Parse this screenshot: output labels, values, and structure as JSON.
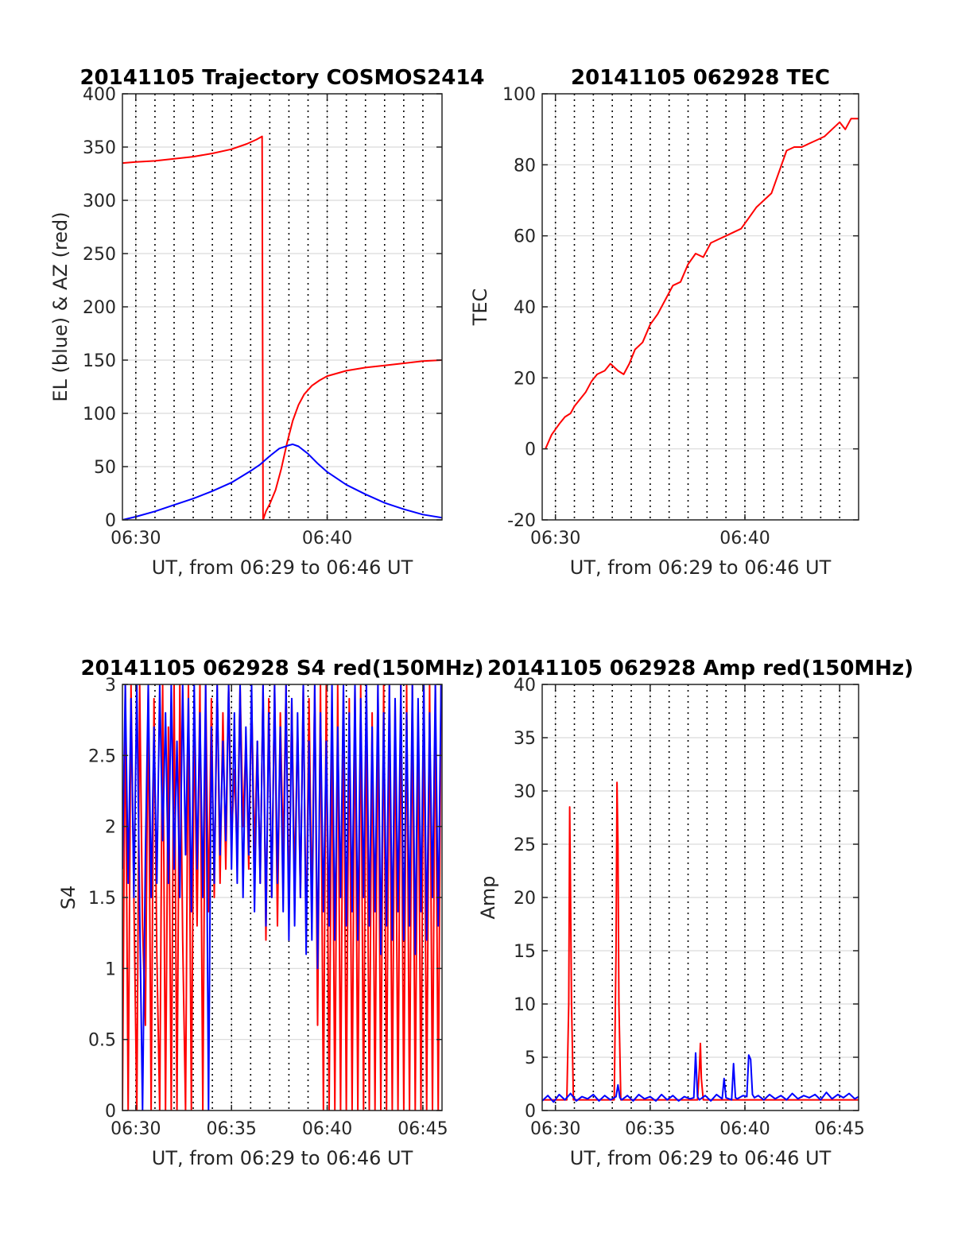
{
  "figure": {
    "background": "#ffffff"
  },
  "colors": {
    "red": "#ff0000",
    "blue": "#0000ff",
    "grid": "#000000",
    "axis": "#262626"
  },
  "chart_data": [
    {
      "id": "trajectory",
      "type": "line",
      "title": "20141105 Trajectory COSMOS2414",
      "xlabel": "UT, from 06:29 to 06:46 UT",
      "ylabel": "EL (blue) & AZ (red)",
      "xlim_min": [
        29.3,
        46
      ],
      "ylim": [
        0,
        400
      ],
      "yticks": [
        0,
        50,
        100,
        150,
        200,
        250,
        300,
        350,
        400
      ],
      "ytick_labels": [
        "0",
        "50",
        "100",
        "150",
        "200",
        "250",
        "300",
        "350",
        "400"
      ],
      "xticks_min": [
        30,
        40
      ],
      "xtick_labels": [
        "06:30",
        "06:40"
      ],
      "minor_grid_min": [
        30,
        31,
        32,
        33,
        34,
        35,
        36,
        37,
        38,
        39,
        40,
        41,
        42,
        43,
        44,
        45
      ],
      "grid": true,
      "series": [
        {
          "color": "#ff0000",
          "x_min": [
            29.3,
            30,
            31,
            32,
            33,
            34,
            35,
            35.8,
            36.3,
            36.6,
            36.65,
            36.8,
            37.0,
            37.3,
            37.6,
            37.9,
            38.2,
            38.5,
            38.8,
            39.2,
            39.6,
            40,
            41,
            42,
            43,
            44,
            45,
            46
          ],
          "y": [
            335,
            336,
            337,
            339,
            341,
            344,
            348,
            353,
            357,
            360,
            0,
            8,
            15,
            28,
            48,
            72,
            93,
            108,
            118,
            126,
            131,
            135,
            140,
            143,
            145,
            147,
            149,
            150
          ]
        },
        {
          "color": "#0000ff",
          "x_min": [
            29.3,
            30,
            31,
            32,
            33,
            34,
            35,
            36,
            36.5,
            37,
            37.5,
            38,
            38.2,
            38.5,
            39,
            39.5,
            40,
            41,
            42,
            43,
            44,
            45,
            46
          ],
          "y": [
            0,
            3,
            8,
            14,
            20,
            27,
            35,
            46,
            52,
            60,
            67,
            70,
            71,
            69,
            62,
            53,
            45,
            33,
            24,
            16,
            10,
            5,
            2
          ]
        }
      ]
    },
    {
      "id": "tec",
      "type": "line",
      "title": "20141105 062928 TEC",
      "xlabel": "UT, from 06:29 to 06:46 UT",
      "ylabel": "TEC",
      "xlim_min": [
        29.3,
        46
      ],
      "ylim": [
        -20,
        100
      ],
      "yticks": [
        -20,
        0,
        20,
        40,
        60,
        80,
        100
      ],
      "ytick_labels": [
        "-20",
        "0",
        "20",
        "40",
        "60",
        "80",
        "100"
      ],
      "xticks_min": [
        30,
        40
      ],
      "xtick_labels": [
        "06:30",
        "06:40"
      ],
      "minor_grid_min": [
        30,
        31,
        32,
        33,
        34,
        35,
        36,
        37,
        38,
        39,
        40,
        41,
        42,
        43,
        44,
        45
      ],
      "grid": true,
      "series": [
        {
          "color": "#ff0000",
          "x_min": [
            29.47,
            29.8,
            30.2,
            30.5,
            30.8,
            31.0,
            31.3,
            31.6,
            31.9,
            32.2,
            32.6,
            32.9,
            33.3,
            33.6,
            33.9,
            34.2,
            34.6,
            35.0,
            35.4,
            35.8,
            36.2,
            36.6,
            37.0,
            37.4,
            37.8,
            38.2,
            38.6,
            39.0,
            39.4,
            39.8,
            40.2,
            40.6,
            41.0,
            41.4,
            41.8,
            42.2,
            42.6,
            43.0,
            43.4,
            43.8,
            44.2,
            44.6,
            45.0,
            45.3,
            45.6,
            46.0
          ],
          "y": [
            0,
            4,
            7,
            9,
            10,
            12,
            14,
            16,
            19,
            21,
            22,
            24,
            22,
            21,
            24,
            28,
            30,
            35,
            38,
            42,
            46,
            47,
            52,
            55,
            54,
            58,
            59,
            60,
            61,
            62,
            65,
            68,
            70,
            72,
            78,
            84,
            85,
            85,
            86,
            87,
            88,
            90,
            92,
            90,
            93,
            93
          ]
        }
      ]
    },
    {
      "id": "s4",
      "type": "line",
      "title": "20141105 062928 S4 red(150MHz)",
      "xlabel": "UT, from 06:29 to 06:46 UT",
      "ylabel": "S4",
      "xlim_min": [
        29.3,
        46
      ],
      "ylim": [
        0,
        3
      ],
      "yticks": [
        0,
        0.5,
        1,
        1.5,
        2,
        2.5,
        3
      ],
      "ytick_labels": [
        "0",
        "0.5",
        "1",
        "1.5",
        "2",
        "2.5",
        "3"
      ],
      "xticks_min": [
        30,
        35,
        40,
        45
      ],
      "xtick_labels": [
        "06:30",
        "06:35",
        "06:40",
        "06:45"
      ],
      "minor_grid_min": [
        30,
        31,
        32,
        33,
        34,
        35,
        36,
        37,
        38,
        39,
        40,
        41,
        42,
        43,
        44,
        45
      ],
      "grid": true,
      "series": [
        {
          "color": "#ff0000",
          "x_min": [
            29.3,
            29.45,
            29.6,
            29.75,
            29.9,
            30.05,
            30.2,
            30.35,
            30.5,
            30.65,
            30.8,
            30.95,
            31.1,
            31.25,
            31.4,
            31.55,
            31.7,
            31.85,
            32.0,
            32.15,
            32.3,
            32.45,
            32.6,
            32.75,
            32.9,
            33.05,
            33.2,
            33.35,
            33.5,
            33.65,
            33.8,
            33.95,
            34.1,
            34.25,
            34.4,
            34.55,
            34.7,
            34.85,
            35.0,
            35.15,
            35.3,
            35.45,
            35.6,
            35.75,
            35.9,
            36.05,
            36.2,
            36.35,
            36.5,
            36.65,
            36.8,
            36.95,
            37.1,
            37.25,
            37.4,
            37.55,
            37.7,
            37.85,
            38.0,
            38.15,
            38.3,
            38.45,
            38.6,
            38.75,
            38.9,
            39.05,
            39.2,
            39.35,
            39.5,
            39.65,
            39.8,
            39.95,
            40.1,
            40.25,
            40.4,
            40.55,
            40.7,
            40.85,
            41.0,
            41.15,
            41.3,
            41.45,
            41.6,
            41.75,
            41.9,
            42.05,
            42.2,
            42.35,
            42.5,
            42.65,
            42.8,
            42.95,
            43.1,
            43.25,
            43.4,
            43.55,
            43.7,
            43.85,
            44.0,
            44.15,
            44.3,
            44.45,
            44.6,
            44.75,
            44.9,
            45.05,
            45.2,
            45.35,
            45.5,
            45.65,
            45.8,
            45.95
          ],
          "y": [
            0,
            3,
            0,
            3,
            1.5,
            0,
            3,
            1.3,
            0.6,
            3,
            0,
            2.9,
            1.1,
            0,
            3,
            0,
            2.7,
            0,
            3,
            0,
            3,
            1.2,
            0,
            3,
            0,
            2.8,
            1.3,
            3,
            0,
            3,
            1.4,
            2.9,
            1.5,
            3,
            1.6,
            2.8,
            1.7,
            3,
            1.9,
            2.4,
            1.8,
            3,
            2.0,
            2.6,
            1.7,
            2.9,
            1.8,
            2.6,
            1.6,
            3,
            1.2,
            2.9,
            1.5,
            3,
            1.3,
            2.8,
            1.8,
            3,
            1.4,
            2.9,
            1.6,
            2.7,
            1.5,
            3,
            1.2,
            2.9,
            1.4,
            3,
            0.6,
            3,
            0,
            3,
            0,
            2.8,
            0,
            3,
            0,
            3,
            0,
            2.9,
            0,
            3,
            0,
            3,
            0,
            3,
            0,
            2.8,
            0,
            3,
            0,
            3,
            0,
            3,
            0,
            2.9,
            0,
            3,
            0,
            3,
            0,
            3,
            0,
            2.8,
            0,
            3,
            0,
            3,
            0,
            3,
            0,
            3
          ]
        },
        {
          "color": "#0000ff",
          "x_min": [
            29.3,
            29.45,
            29.6,
            29.75,
            29.9,
            30.05,
            30.2,
            30.35,
            30.5,
            30.65,
            30.8,
            30.95,
            31.1,
            31.25,
            31.4,
            31.55,
            31.7,
            31.85,
            32.0,
            32.15,
            32.3,
            32.45,
            32.6,
            32.75,
            32.9,
            33.05,
            33.2,
            33.35,
            33.5,
            33.65,
            33.8,
            33.95,
            34.1,
            34.25,
            34.4,
            34.55,
            34.7,
            34.85,
            35.0,
            35.15,
            35.3,
            35.45,
            35.6,
            35.75,
            35.9,
            36.05,
            36.2,
            36.35,
            36.5,
            36.65,
            36.8,
            36.95,
            37.1,
            37.25,
            37.4,
            37.55,
            37.7,
            37.85,
            38.0,
            38.15,
            38.3,
            38.45,
            38.6,
            38.75,
            38.9,
            39.05,
            39.2,
            39.35,
            39.5,
            39.65,
            39.8,
            39.95,
            40.1,
            40.25,
            40.4,
            40.55,
            40.7,
            40.85,
            41.0,
            41.15,
            41.3,
            41.45,
            41.6,
            41.75,
            41.9,
            42.05,
            42.2,
            42.35,
            42.5,
            42.65,
            42.8,
            42.95,
            43.1,
            43.25,
            43.4,
            43.55,
            43.7,
            43.85,
            44.0,
            44.15,
            44.3,
            44.45,
            44.6,
            44.75,
            44.9,
            45.05,
            45.2,
            45.35,
            45.5,
            45.65,
            45.8,
            45.95
          ],
          "y": [
            1.7,
            3,
            1.6,
            2.9,
            1.5,
            3,
            1.4,
            0,
            1.8,
            3,
            1.5,
            2.7,
            1.6,
            3,
            1.9,
            2.8,
            1.6,
            3,
            1.7,
            2.6,
            1.5,
            3,
            1.8,
            2.9,
            1.4,
            3,
            1.7,
            2.8,
            1.5,
            3,
            0,
            2.7,
            1.6,
            3,
            1.8,
            2.6,
            1.9,
            3,
            1.7,
            2.8,
            1.6,
            3,
            1.5,
            2.7,
            1.8,
            3,
            1.4,
            2.6,
            1.6,
            3,
            1.3,
            2.8,
            1.5,
            3,
            1.6,
            2.7,
            1.4,
            3,
            1.2,
            2.9,
            1.3,
            2.8,
            1.5,
            3,
            1.1,
            2.6,
            1.2,
            3,
            1.0,
            2.8,
            1.4,
            2.6,
            1.3,
            3,
            1.2,
            2.7,
            1.5,
            3,
            1.3,
            2.8,
            1.4,
            3,
            1.2,
            2.9,
            1.5,
            3,
            1.3,
            2.7,
            1.4,
            3,
            1.1,
            2.8,
            1.3,
            3,
            1.2,
            2.9,
            1.4,
            3,
            1.2,
            2.8,
            1.3,
            3,
            1.1,
            2.9,
            1.4,
            3,
            1.2,
            2.8,
            1.5,
            3,
            1.3,
            3
          ]
        }
      ]
    },
    {
      "id": "amp",
      "type": "line",
      "title": "20141105 062928 Amp red(150MHz)",
      "xlabel": "UT, from 06:29 to 06:46 UT",
      "ylabel": "Amp",
      "xlim_min": [
        29.3,
        46
      ],
      "ylim": [
        0,
        40
      ],
      "yticks": [
        0,
        5,
        10,
        15,
        20,
        25,
        30,
        35,
        40
      ],
      "ytick_labels": [
        "0",
        "5",
        "10",
        "15",
        "20",
        "25",
        "30",
        "35",
        "40"
      ],
      "xticks_min": [
        30,
        35,
        40,
        45
      ],
      "xtick_labels": [
        "06:30",
        "06:35",
        "06:40",
        "06:45"
      ],
      "minor_grid_min": [
        30,
        31,
        32,
        33,
        34,
        35,
        36,
        37,
        38,
        39,
        40,
        41,
        42,
        43,
        44,
        45
      ],
      "grid": true,
      "series": [
        {
          "color": "#ff0000",
          "x_min": [
            29.3,
            30.6,
            30.7,
            30.75,
            30.8,
            30.85,
            30.95,
            33.1,
            33.2,
            33.25,
            33.3,
            33.35,
            33.45,
            37.5,
            37.6,
            37.65,
            37.7,
            37.8,
            46.0
          ],
          "y": [
            1,
            1,
            10,
            28.5,
            20,
            10,
            1,
            1,
            15,
            30.8,
            25,
            10,
            1,
            1,
            4,
            6.3,
            3,
            1,
            1
          ]
        },
        {
          "color": "#0000ff",
          "x_min": [
            29.3,
            29.6,
            29.9,
            30.2,
            30.5,
            30.8,
            31.1,
            31.4,
            31.7,
            32.0,
            32.3,
            32.6,
            32.9,
            33.2,
            33.3,
            33.4,
            33.5,
            33.8,
            34.1,
            34.4,
            34.7,
            35.0,
            35.3,
            35.6,
            35.9,
            36.2,
            36.5,
            36.8,
            37.1,
            37.3,
            37.4,
            37.5,
            37.6,
            37.9,
            38.2,
            38.5,
            38.8,
            38.9,
            39.0,
            39.3,
            39.4,
            39.5,
            39.6,
            39.9,
            40.1,
            40.2,
            40.3,
            40.4,
            40.5,
            40.7,
            41.0,
            41.3,
            41.6,
            41.9,
            42.2,
            42.5,
            42.8,
            43.1,
            43.4,
            43.7,
            44.0,
            44.3,
            44.6,
            44.9,
            45.2,
            45.5,
            45.8,
            46.0
          ],
          "y": [
            0.9,
            1.4,
            0.8,
            1.5,
            1.0,
            1.6,
            0.9,
            1.3,
            1.1,
            1.5,
            0.9,
            1.4,
            1.0,
            1.3,
            2.4,
            1.2,
            1.0,
            1.4,
            0.9,
            1.5,
            1.1,
            1.3,
            0.9,
            1.5,
            1.0,
            1.4,
            0.9,
            1.3,
            1.1,
            1.2,
            5.4,
            1.3,
            1.0,
            1.4,
            0.9,
            1.5,
            1.1,
            3.0,
            1.2,
            1.0,
            4.4,
            1.2,
            1.1,
            1.4,
            1.3,
            5.2,
            4.8,
            1.5,
            1.2,
            1.4,
            1.0,
            1.5,
            1.1,
            1.4,
            1.0,
            1.6,
            1.1,
            1.4,
            1.2,
            1.5,
            1.0,
            1.7,
            1.1,
            1.5,
            1.2,
            1.6,
            1.1,
            1.3
          ]
        }
      ]
    }
  ]
}
